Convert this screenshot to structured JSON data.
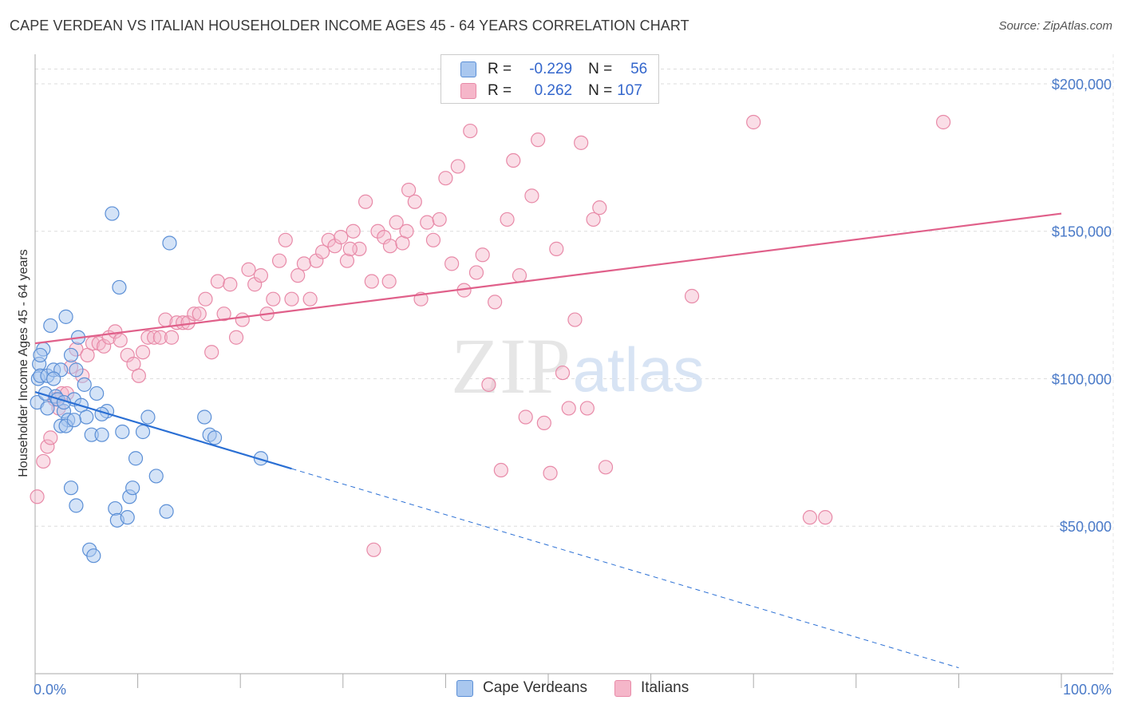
{
  "header": {
    "title": "CAPE VERDEAN VS ITALIAN HOUSEHOLDER INCOME AGES 45 - 64 YEARS CORRELATION CHART",
    "source": "Source: ZipAtlas.com"
  },
  "legend": {
    "rows": [
      {
        "r_label": "R =",
        "r_value": "-0.229",
        "n_label": "N =",
        "n_value": "56"
      },
      {
        "r_label": "R =",
        "r_value": "0.262",
        "n_label": "N =",
        "n_value": "107"
      }
    ]
  },
  "bottom_legend": [
    "Cape Verdeans",
    "Italians"
  ],
  "watermark": {
    "zip": "ZIP",
    "atlas": "atlas"
  },
  "colors": {
    "blue_fill": "#a9c7ef",
    "blue_stroke": "#5b8fd6",
    "blue_line": "#2a6fd4",
    "pink_fill": "#f5b6c9",
    "pink_stroke": "#e88aa8",
    "pink_line": "#e0608a",
    "tick_text": "#4a7ac8"
  },
  "chart_data": {
    "type": "scatter",
    "title": "CAPE VERDEAN VS ITALIAN HOUSEHOLDER INCOME AGES 45 - 64 YEARS CORRELATION CHART",
    "xlabel": "",
    "ylabel": "Householder Income Ages 45 - 64 years",
    "xlim": [
      0,
      100
    ],
    "ylim": [
      0,
      210000
    ],
    "x_tick_labels": [
      "0.0%",
      "100.0%"
    ],
    "y_ticks": [
      50000,
      100000,
      150000,
      200000
    ],
    "y_tick_labels": [
      "$50,000",
      "$100,000",
      "$150,000",
      "$200,000"
    ],
    "grid": true,
    "series": [
      {
        "name": "Cape Verdeans",
        "r": -0.229,
        "n": 56,
        "trend": {
          "x0": 0,
          "y0": 95500,
          "x_solid_end": 25,
          "y_solid_end": 69500,
          "x1": 90,
          "y1": 2000
        },
        "points": [
          [
            0.2,
            92000
          ],
          [
            0.3,
            100000
          ],
          [
            0.4,
            105000
          ],
          [
            0.5,
            101000
          ],
          [
            0.8,
            110000
          ],
          [
            1.0,
            95000
          ],
          [
            1.2,
            101000
          ],
          [
            1.5,
            118000
          ],
          [
            1.8,
            103000
          ],
          [
            2.0,
            94000
          ],
          [
            2.2,
            93000
          ],
          [
            2.5,
            103000
          ],
          [
            2.8,
            89000
          ],
          [
            3.0,
            121000
          ],
          [
            3.2,
            86000
          ],
          [
            3.5,
            108000
          ],
          [
            3.8,
            93000
          ],
          [
            4.0,
            103000
          ],
          [
            4.2,
            114000
          ],
          [
            4.5,
            91000
          ],
          [
            5.0,
            87000
          ],
          [
            5.5,
            81000
          ],
          [
            6.0,
            95000
          ],
          [
            6.5,
            81000
          ],
          [
            7.0,
            89000
          ],
          [
            7.5,
            156000
          ],
          [
            7.8,
            56000
          ],
          [
            8.0,
            52000
          ],
          [
            8.2,
            131000
          ],
          [
            8.5,
            82000
          ],
          [
            9.0,
            53000
          ],
          [
            9.2,
            60000
          ],
          [
            9.5,
            63000
          ],
          [
            9.8,
            73000
          ],
          [
            10.5,
            82000
          ],
          [
            11.0,
            87000
          ],
          [
            11.8,
            67000
          ],
          [
            12.8,
            55000
          ],
          [
            13.1,
            146000
          ],
          [
            16.5,
            87000
          ],
          [
            17.0,
            81000
          ],
          [
            17.5,
            80000
          ],
          [
            22.0,
            73000
          ],
          [
            3.5,
            63000
          ],
          [
            4.0,
            57000
          ],
          [
            5.3,
            42000
          ],
          [
            5.7,
            40000
          ],
          [
            2.5,
            84000
          ],
          [
            1.2,
            90000
          ],
          [
            3.0,
            84000
          ],
          [
            1.8,
            100000
          ],
          [
            4.8,
            98000
          ],
          [
            2.8,
            92000
          ],
          [
            0.5,
            108000
          ],
          [
            3.8,
            86000
          ],
          [
            6.5,
            88000
          ]
        ]
      },
      {
        "name": "Italians",
        "r": 0.262,
        "n": 107,
        "trend": {
          "x0": 0,
          "y0": 112000,
          "x1": 100,
          "y1": 156000
        },
        "points": [
          [
            0.2,
            60000
          ],
          [
            0.8,
            72000
          ],
          [
            1.2,
            77000
          ],
          [
            1.5,
            80000
          ],
          [
            1.9,
            93000
          ],
          [
            2.3,
            90000
          ],
          [
            2.6,
            95000
          ],
          [
            3.1,
            95000
          ],
          [
            3.5,
            104000
          ],
          [
            4.0,
            110000
          ],
          [
            4.6,
            101000
          ],
          [
            5.1,
            108000
          ],
          [
            5.6,
            112000
          ],
          [
            6.2,
            112000
          ],
          [
            6.7,
            111000
          ],
          [
            7.2,
            114000
          ],
          [
            7.8,
            116000
          ],
          [
            8.3,
            113000
          ],
          [
            9.0,
            108000
          ],
          [
            9.6,
            105000
          ],
          [
            10.1,
            101000
          ],
          [
            10.5,
            109000
          ],
          [
            11.0,
            114000
          ],
          [
            11.6,
            114000
          ],
          [
            12.2,
            114000
          ],
          [
            12.7,
            120000
          ],
          [
            13.3,
            114000
          ],
          [
            13.8,
            119000
          ],
          [
            14.4,
            119000
          ],
          [
            14.9,
            119000
          ],
          [
            15.5,
            122000
          ],
          [
            16.0,
            122000
          ],
          [
            16.6,
            127000
          ],
          [
            17.2,
            109000
          ],
          [
            17.8,
            133000
          ],
          [
            18.4,
            122000
          ],
          [
            19.0,
            132000
          ],
          [
            19.6,
            114000
          ],
          [
            20.2,
            120000
          ],
          [
            20.8,
            137000
          ],
          [
            21.4,
            132000
          ],
          [
            22.0,
            135000
          ],
          [
            22.6,
            122000
          ],
          [
            23.2,
            127000
          ],
          [
            23.8,
            140000
          ],
          [
            24.4,
            147000
          ],
          [
            25.0,
            127000
          ],
          [
            25.6,
            135000
          ],
          [
            26.2,
            139000
          ],
          [
            26.8,
            127000
          ],
          [
            27.4,
            140000
          ],
          [
            28.0,
            143000
          ],
          [
            28.6,
            147000
          ],
          [
            29.2,
            145000
          ],
          [
            29.8,
            148000
          ],
          [
            30.4,
            140000
          ],
          [
            31.0,
            150000
          ],
          [
            31.6,
            144000
          ],
          [
            32.2,
            160000
          ],
          [
            32.8,
            133000
          ],
          [
            33.4,
            150000
          ],
          [
            34.0,
            148000
          ],
          [
            34.6,
            145000
          ],
          [
            35.2,
            153000
          ],
          [
            35.8,
            146000
          ],
          [
            36.4,
            164000
          ],
          [
            37.0,
            160000
          ],
          [
            37.6,
            127000
          ],
          [
            38.2,
            153000
          ],
          [
            38.8,
            147000
          ],
          [
            39.4,
            154000
          ],
          [
            40.0,
            168000
          ],
          [
            40.6,
            139000
          ],
          [
            41.2,
            172000
          ],
          [
            41.8,
            130000
          ],
          [
            42.4,
            184000
          ],
          [
            43.0,
            136000
          ],
          [
            43.6,
            142000
          ],
          [
            44.2,
            98000
          ],
          [
            44.8,
            126000
          ],
          [
            45.4,
            69000
          ],
          [
            46.0,
            154000
          ],
          [
            46.6,
            174000
          ],
          [
            47.2,
            135000
          ],
          [
            47.8,
            87000
          ],
          [
            48.4,
            162000
          ],
          [
            49.0,
            181000
          ],
          [
            49.6,
            85000
          ],
          [
            50.2,
            68000
          ],
          [
            50.8,
            144000
          ],
          [
            51.4,
            102000
          ],
          [
            52.0,
            90000
          ],
          [
            52.6,
            120000
          ],
          [
            53.2,
            180000
          ],
          [
            53.8,
            90000
          ],
          [
            54.4,
            154000
          ],
          [
            55.0,
            158000
          ],
          [
            55.6,
            70000
          ],
          [
            64.0,
            128000
          ],
          [
            70.0,
            187000
          ],
          [
            75.5,
            53000
          ],
          [
            77.0,
            53000
          ],
          [
            88.5,
            187000
          ],
          [
            33.0,
            42000
          ],
          [
            36.2,
            150000
          ],
          [
            34.5,
            133000
          ],
          [
            30.7,
            144000
          ]
        ]
      }
    ]
  }
}
